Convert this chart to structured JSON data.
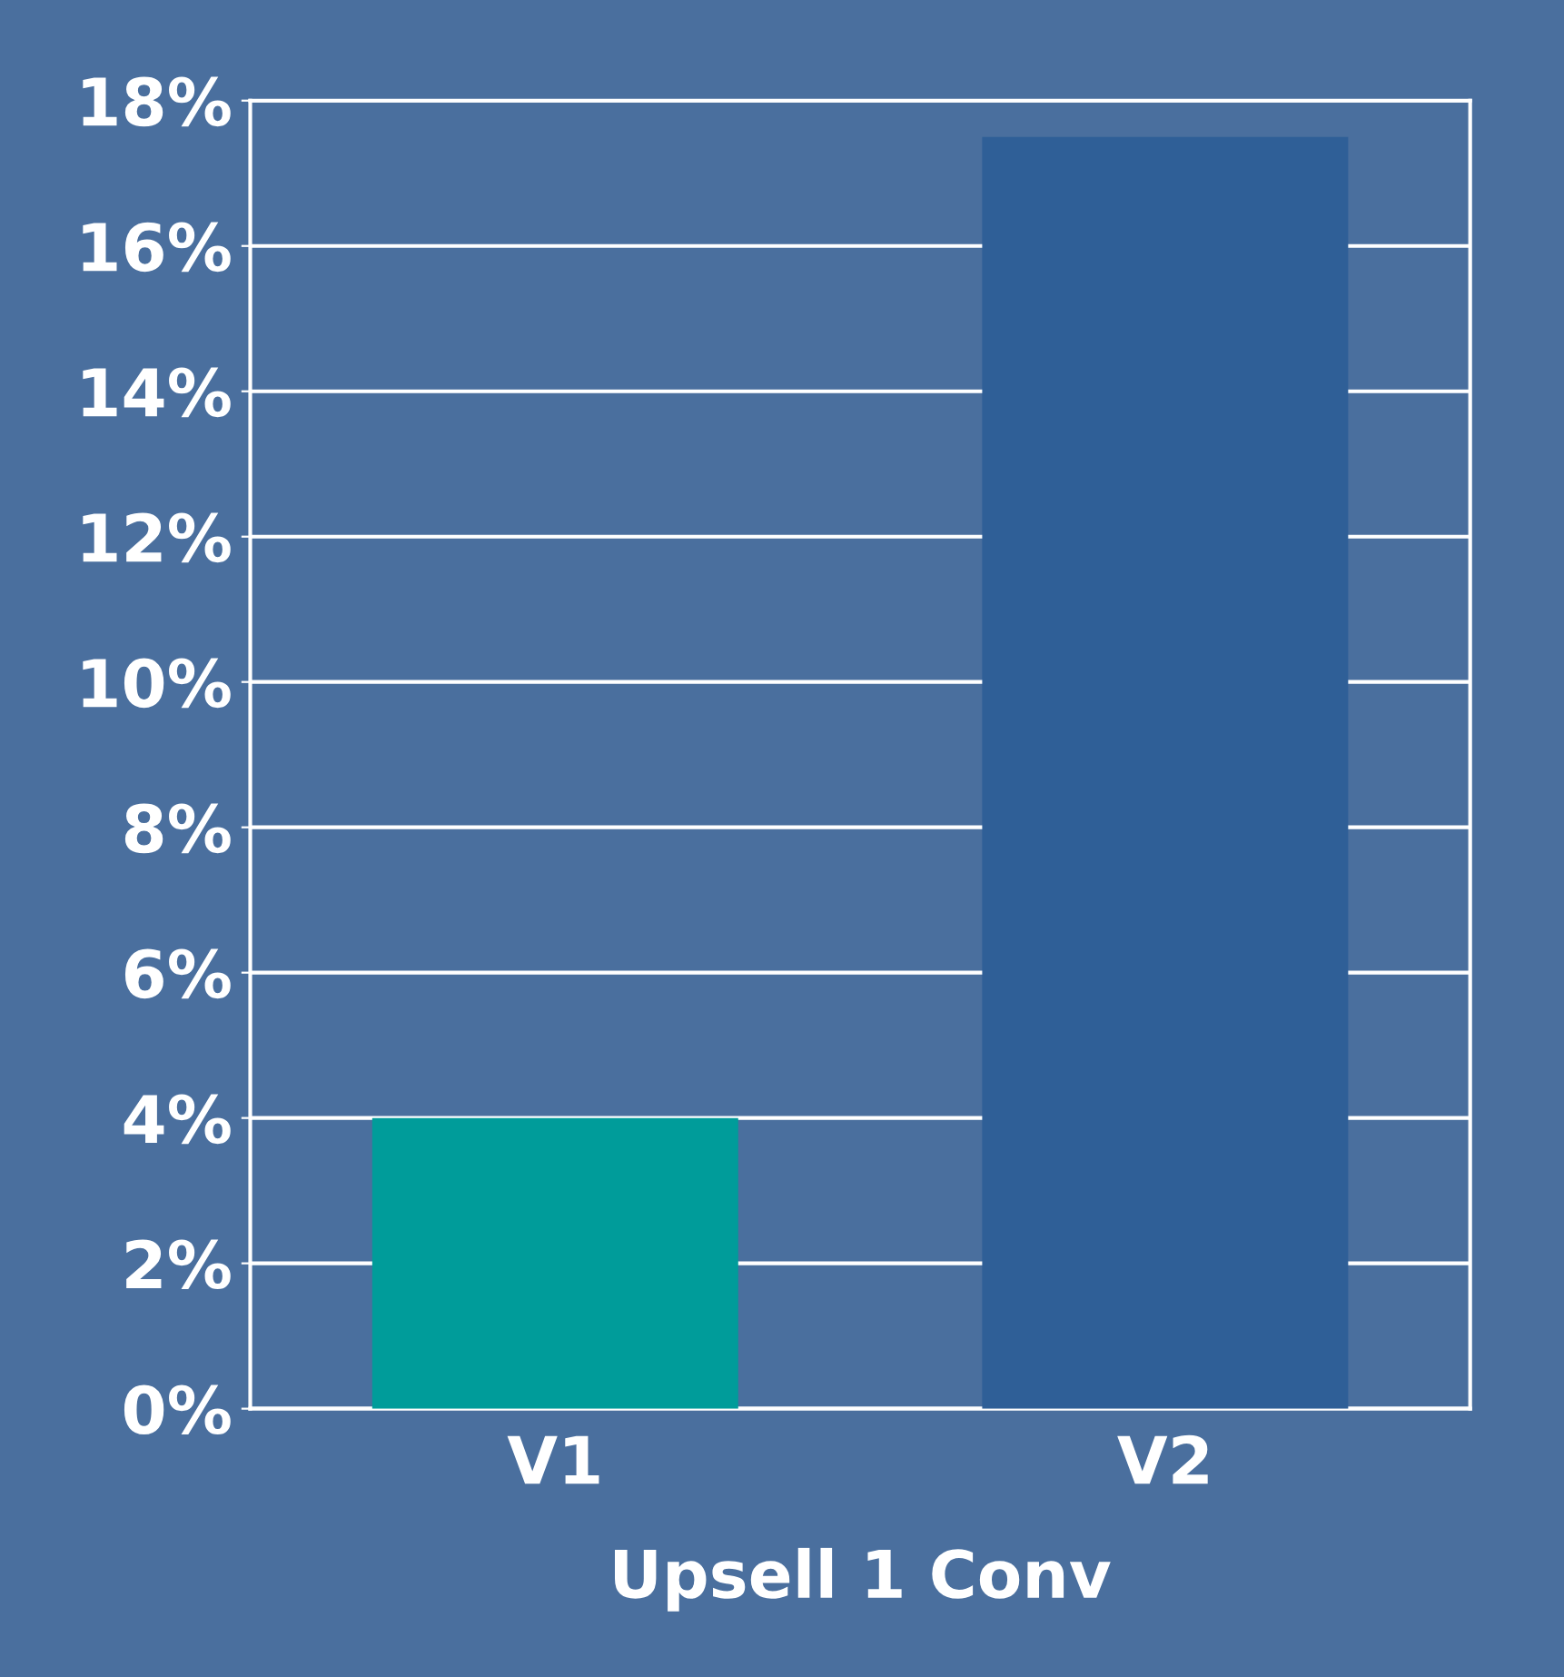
{
  "chart_data": {
    "type": "bar",
    "categories": [
      "V1",
      "V2"
    ],
    "values": [
      4,
      17.5
    ],
    "colors": [
      "#009c9a",
      "#2f5f97"
    ],
    "xlabel": "Upsell 1 Conv",
    "ylim": [
      0,
      18
    ],
    "yticks": [
      {
        "value": 0,
        "label": "0%"
      },
      {
        "value": 2,
        "label": "2%"
      },
      {
        "value": 4,
        "label": "4%"
      },
      {
        "value": 6,
        "label": "6%"
      },
      {
        "value": 8,
        "label": "8%"
      },
      {
        "value": 10,
        "label": "10%"
      },
      {
        "value": 12,
        "label": "12%"
      },
      {
        "value": 14,
        "label": "14%"
      },
      {
        "value": 16,
        "label": "16%"
      },
      {
        "value": 18,
        "label": "18%"
      }
    ],
    "grid": "y"
  }
}
